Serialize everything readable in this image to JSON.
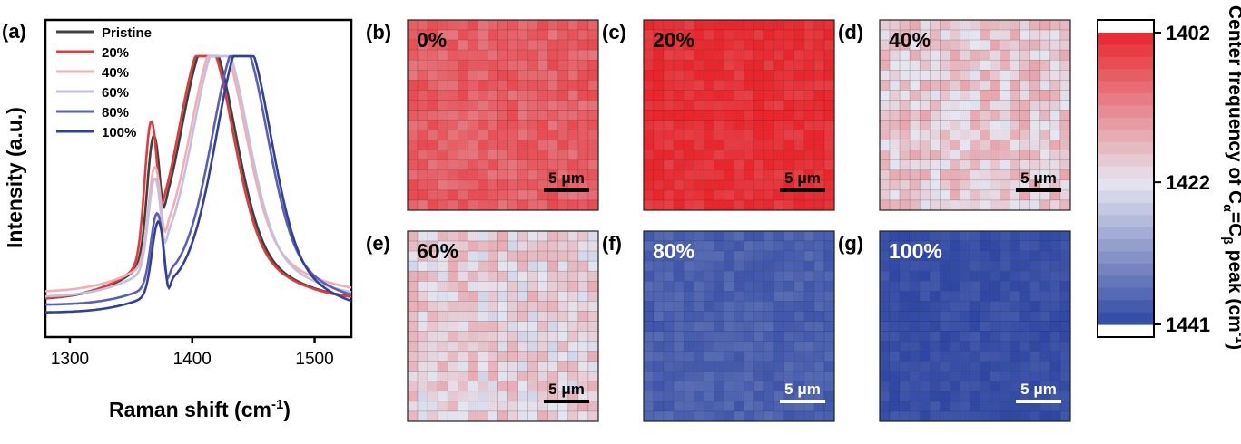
{
  "chart_data": [
    {
      "type": "line",
      "panel_label": "(a)",
      "xlabel": "Raman shift (cm",
      "xlabel_sup": "-1",
      "xlabel_end": ")",
      "ylabel": "Intensity (a.u.)",
      "xlim": [
        1280,
        1530
      ],
      "xticks": [
        "1300",
        "1400",
        "1500"
      ],
      "legend_placement": "top-left",
      "series": [
        {
          "name": "Pristine",
          "color": "#404040",
          "baseline": 0.05,
          "peak": 1413,
          "shoulder": 1368,
          "shoulder_rel": 0.58
        },
        {
          "name": "20%",
          "color": "#e03a3a",
          "baseline": 0.05,
          "peak": 1411,
          "shoulder": 1366,
          "shoulder_rel": 0.66
        },
        {
          "name": "40%",
          "color": "#f2aeb3",
          "baseline": 0.08,
          "peak": 1421,
          "shoulder": 1369,
          "shoulder_rel": 0.48
        },
        {
          "name": "60%",
          "color": "#c4bfde",
          "baseline": 0.06,
          "peak": 1423,
          "shoulder": 1369,
          "shoulder_rel": 0.45
        },
        {
          "name": "80%",
          "color": "#5a60b4",
          "baseline": 0.03,
          "peak": 1439,
          "shoulder": 1371,
          "shoulder_rel": 0.37
        },
        {
          "name": "100%",
          "color": "#333f9c",
          "baseline": 0.0,
          "peak": 1442,
          "shoulder": 1372,
          "shoulder_rel": 0.36
        }
      ]
    },
    {
      "type": "heatmap",
      "colorbar": {
        "label_main": "Center frequency of C",
        "label_sub1": "α",
        "label_mid": "=C",
        "label_sub2": "β",
        "label_end": " peak (cm",
        "label_sup": "-1",
        "label_close": ")",
        "ticks": [
          "1402",
          "1422",
          "1441"
        ],
        "range": [
          1402,
          1441
        ],
        "colors": {
          "high": "#e8262c",
          "mid": "#e6e6f0",
          "low": "#2e47a4"
        }
      },
      "scale_bar": "5 μm",
      "maps": [
        {
          "label": "(b)",
          "title": "0%",
          "mean": 1408,
          "spread": 1.4,
          "text_color": "#000000",
          "bar_color": "#000000"
        },
        {
          "label": "(c)",
          "title": "20%",
          "mean": 1403,
          "spread": 1.0,
          "text_color": "#000000",
          "bar_color": "#000000"
        },
        {
          "label": "(d)",
          "title": "40%",
          "mean": 1419,
          "spread": 2.2,
          "text_color": "#000000",
          "bar_color": "#000000"
        },
        {
          "label": "(e)",
          "title": "60%",
          "mean": 1420,
          "spread": 2.4,
          "text_color": "#000000",
          "bar_color": "#000000"
        },
        {
          "label": "(f)",
          "title": "80%",
          "mean": 1438,
          "spread": 0.8,
          "text_color": "#ffffff",
          "bar_color": "#ffffff"
        },
        {
          "label": "(g)",
          "title": "100%",
          "mean": 1440,
          "spread": 0.6,
          "text_color": "#ffffff",
          "bar_color": "#ffffff"
        }
      ]
    }
  ]
}
